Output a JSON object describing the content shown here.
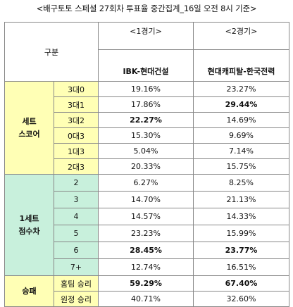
{
  "title": "<배구토토 스페셜 27회차 투표율 중간집계_16일 오전 8시 기준>",
  "header": {
    "gubun": "구분",
    "match1": "<1경기>",
    "match2": "<2경기>",
    "team1": "IBK-현대건설",
    "team2": "현대캐피탈-한국전력"
  },
  "sections": [
    {
      "category_line1": "세트",
      "category_line2": "스코어",
      "rows": [
        {
          "label": "3대0",
          "v1": "19.16%",
          "v2": "23.27%",
          "b1": false,
          "b2": false
        },
        {
          "label": "3대1",
          "v1": "17.86%",
          "v2": "29.44%",
          "b1": false,
          "b2": true
        },
        {
          "label": "3대2",
          "v1": "22.27%",
          "v2": "14.69%",
          "b1": true,
          "b2": false
        },
        {
          "label": "0대3",
          "v1": "15.30%",
          "v2": "9.69%",
          "b1": false,
          "b2": false
        },
        {
          "label": "1대3",
          "v1": "5.04%",
          "v2": "7.14%",
          "b1": false,
          "b2": false
        },
        {
          "label": "2대3",
          "v1": "20.33%",
          "v2": "15.75%",
          "b1": false,
          "b2": false
        }
      ]
    },
    {
      "category_line1": "1세트",
      "category_line2": "점수차",
      "rows": [
        {
          "label": "2",
          "v1": "6.27%",
          "v2": "8.25%",
          "b1": false,
          "b2": false
        },
        {
          "label": "3",
          "v1": "14.70%",
          "v2": "21.13%",
          "b1": false,
          "b2": false
        },
        {
          "label": "4",
          "v1": "14.57%",
          "v2": "14.33%",
          "b1": false,
          "b2": false
        },
        {
          "label": "5",
          "v1": "23.23%",
          "v2": "15.99%",
          "b1": false,
          "b2": false
        },
        {
          "label": "6",
          "v1": "28.45%",
          "v2": "23.77%",
          "b1": true,
          "b2": true
        },
        {
          "label": "7+",
          "v1": "12.74%",
          "v2": "16.51%",
          "b1": false,
          "b2": false
        }
      ]
    },
    {
      "category_line1": "승패",
      "category_line2": "",
      "rows": [
        {
          "label": "홈팀 승리",
          "v1": "59.29%",
          "v2": "67.40%",
          "b1": true,
          "b2": true
        },
        {
          "label": "원정 승리",
          "v1": "40.71%",
          "v2": "32.60%",
          "b1": false,
          "b2": false
        }
      ]
    }
  ],
  "colors": {
    "score_section": "#ffffb5",
    "diff_section": "#c8f0dc",
    "result_section": "#ffffb5",
    "border": "#888888"
  }
}
